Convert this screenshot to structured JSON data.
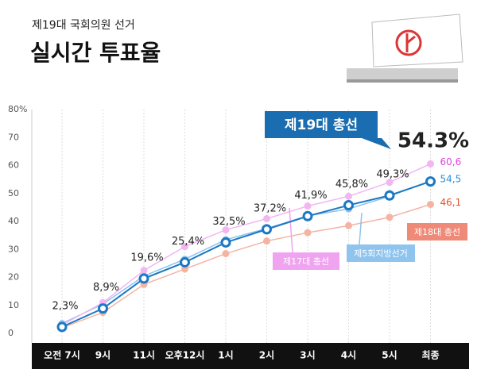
{
  "chart_data": {
    "type": "line",
    "subtitle": "제19대 국회의원 선거",
    "title": "실시간 투표율",
    "categories": [
      "오전 7시",
      "9시",
      "11시",
      "오후12시",
      "1시",
      "2시",
      "3시",
      "4시",
      "5시",
      "최종"
    ],
    "ylim": [
      0,
      80
    ],
    "yticks": [
      0,
      10,
      20,
      30,
      40,
      50,
      60,
      70,
      {
        "value": 80,
        "label": "80%"
      }
    ],
    "grid": true,
    "series": [
      {
        "name": "제19대 총선",
        "color": "#1b78c4",
        "values": [
          2.3,
          8.9,
          19.6,
          25.4,
          32.5,
          37.2,
          41.9,
          45.8,
          49.3,
          54.3
        ],
        "value_labels": [
          "2,3%",
          "8,9%",
          "19,6%",
          "25,4%",
          "32,5%",
          "37,2%",
          "41,9%",
          "45,8%",
          "49,3%",
          "54.3%"
        ]
      },
      {
        "name": "제17대 총선",
        "color": "#f2b6f2",
        "values": [
          3,
          11,
          22.5,
          31,
          37,
          41,
          45.5,
          49,
          54,
          60.6
        ],
        "value_labels": [
          null,
          null,
          null,
          null,
          null,
          null,
          null,
          null,
          null,
          "60,6"
        ]
      },
      {
        "name": "제5회지방선거",
        "color": "#8ec2ec",
        "values": [
          3.5,
          10.5,
          20.5,
          26.5,
          33.5,
          37.5,
          42,
          44.5,
          49,
          54.5
        ],
        "value_labels": [
          null,
          null,
          null,
          null,
          null,
          null,
          null,
          null,
          null,
          "54,5"
        ]
      },
      {
        "name": "제18대 총선",
        "color": "#f4b4a4",
        "values": [
          2,
          7.5,
          17.5,
          23,
          28.5,
          33,
          36,
          38.5,
          41.5,
          46.1
        ],
        "value_labels": [
          null,
          null,
          null,
          null,
          null,
          null,
          null,
          null,
          null,
          "46,1"
        ]
      }
    ]
  }
}
